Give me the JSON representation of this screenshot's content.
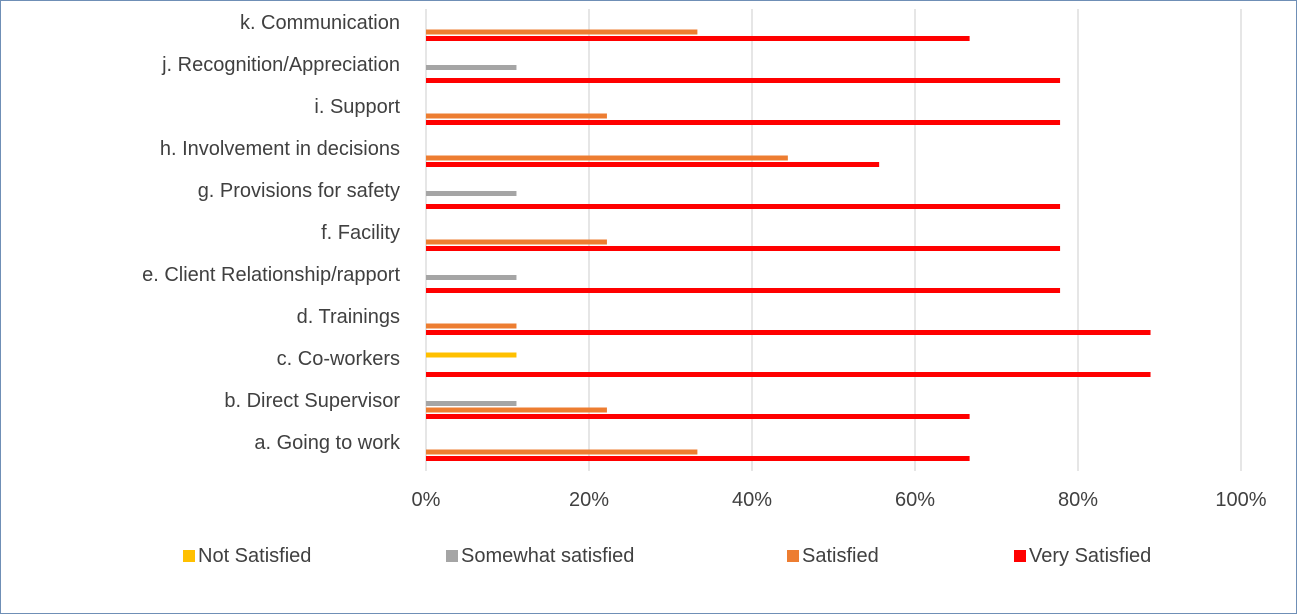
{
  "chart_data": {
    "type": "bar",
    "orientation": "horizontal",
    "categories": [
      "a. Going to work",
      "b. Direct Supervisor",
      "c. Co-workers",
      "d. Trainings",
      "e. Client Relationship/rapport",
      "f.  Facility",
      "g. Provisions for safety",
      "h. Involvement in decisions",
      "i.  Support",
      "j. Recognition/Appreciation",
      "k. Communication "
    ],
    "series": [
      {
        "name": "Not Satisfied",
        "color": "#ffc000",
        "values": [
          0,
          0,
          11.1,
          0,
          0,
          0,
          0,
          0,
          0,
          0,
          0
        ]
      },
      {
        "name": "Somewhat satisfied",
        "color": "#a5a5a5",
        "values": [
          0,
          11.1,
          0,
          0,
          11.1,
          0,
          11.1,
          0,
          0,
          11.1,
          0
        ]
      },
      {
        "name": "Satisfied",
        "color": "#ed7d31",
        "values": [
          33.3,
          22.2,
          0,
          11.1,
          0,
          22.2,
          0,
          44.4,
          22.2,
          0,
          33.3
        ]
      },
      {
        "name": "Very Satisfied",
        "color": "#ff0000",
        "values": [
          66.7,
          66.7,
          88.9,
          88.9,
          77.8,
          77.8,
          77.8,
          55.6,
          77.8,
          77.8,
          66.7
        ]
      }
    ],
    "xlim": [
      0,
      100
    ],
    "x_ticks": [
      "0%",
      "20%",
      "40%",
      "60%",
      "80%",
      "100%"
    ],
    "title": "",
    "xlabel": "",
    "ylabel": "",
    "grid": true,
    "legend": "bottom"
  }
}
